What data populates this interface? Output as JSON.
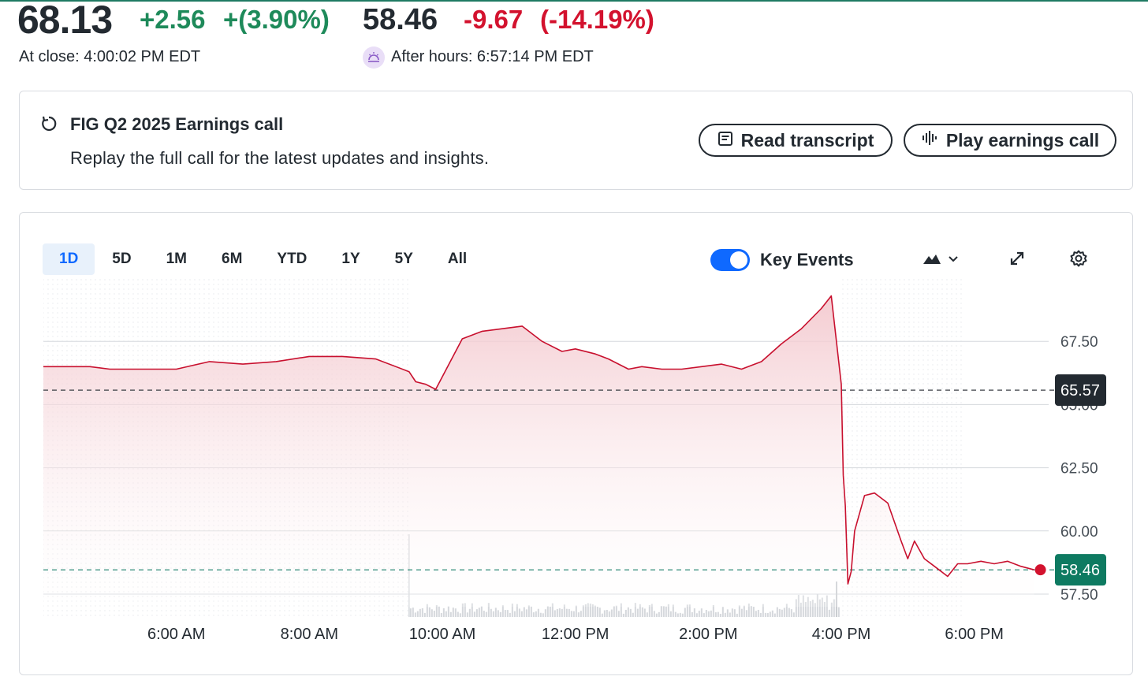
{
  "quote": {
    "price": "68.13",
    "change": "+2.56",
    "change_pct": "+(3.90%)",
    "close_label": "At close: 4:00:02 PM EDT",
    "after_price": "58.46",
    "after_change": "-9.67",
    "after_change_pct": "(-14.19%)",
    "after_label": "After hours: 6:57:14 PM EDT"
  },
  "earnings": {
    "title": "FIG Q2 2025 Earnings call",
    "description": "Replay the full call for the latest updates and insights.",
    "read_label": "Read transcript",
    "play_label": "Play earnings call"
  },
  "toolbar": {
    "ranges": [
      "1D",
      "5D",
      "1M",
      "6M",
      "YTD",
      "1Y",
      "5Y",
      "All"
    ],
    "active_range": "1D",
    "key_events_label": "Key Events",
    "key_events_on": true
  },
  "colors": {
    "positive": "#1e8a5a",
    "negative": "#d3122e",
    "line": "#c8102e",
    "accent": "#0f69ff",
    "prev_close_badge": "#232a31",
    "current_badge": "#0e7a61"
  },
  "chart_data": {
    "type": "area",
    "ylim": [
      57.0,
      70.0
    ],
    "y_ticks": [
      {
        "value": 57.5,
        "label": "57.50"
      },
      {
        "value": 60.0,
        "label": "60.00"
      },
      {
        "value": 62.5,
        "label": "62.50"
      },
      {
        "value": 65.0,
        "label": "65.00"
      },
      {
        "value": 67.5,
        "label": "67.50"
      }
    ],
    "x_ticks": [
      "6:00 AM",
      "8:00 AM",
      "10:00 AM",
      "12:00 PM",
      "2:00 PM",
      "4:00 PM",
      "6:00 PM"
    ],
    "x_tick_hours": [
      6,
      8,
      10,
      12,
      14,
      16,
      18
    ],
    "x_range_hours": [
      4,
      19
    ],
    "regular_session_hours": [
      9.5,
      16
    ],
    "previous_close": {
      "value": 65.57,
      "label": "65.57"
    },
    "current": {
      "value": 58.46,
      "label": "58.46"
    },
    "series": [
      {
        "x": [
          4.0,
          4.3,
          4.7,
          5.0,
          5.5,
          6.0,
          6.5,
          7.0,
          7.5,
          8.0,
          8.5,
          9.0,
          9.5,
          9.6,
          9.75,
          9.9,
          10.1,
          10.3,
          10.6,
          10.9,
          11.2,
          11.5,
          11.8,
          12.0,
          12.3,
          12.5,
          12.8,
          13.0,
          13.3,
          13.6,
          13.9,
          14.2,
          14.5,
          14.8,
          15.1,
          15.4,
          15.7,
          15.85,
          16.0,
          16.03,
          16.06,
          16.1,
          16.15,
          16.2,
          16.35,
          16.5,
          16.7,
          16.9,
          17.0,
          17.1,
          17.25,
          17.4,
          17.6,
          17.75,
          17.9,
          18.1,
          18.3,
          18.5,
          18.7,
          18.9
        ],
        "y": [
          66.5,
          66.5,
          66.5,
          66.4,
          66.4,
          66.4,
          66.7,
          66.6,
          66.7,
          66.9,
          66.9,
          66.8,
          66.3,
          65.9,
          65.8,
          65.6,
          66.6,
          67.6,
          67.9,
          68.0,
          68.1,
          67.5,
          67.1,
          67.2,
          67.0,
          66.8,
          66.4,
          66.5,
          66.4,
          66.4,
          66.5,
          66.6,
          66.4,
          66.7,
          67.4,
          68.0,
          68.8,
          69.3,
          65.8,
          62.2,
          61.0,
          57.9,
          58.4,
          60.0,
          61.4,
          61.5,
          61.1,
          59.6,
          58.9,
          59.6,
          58.9,
          58.6,
          58.2,
          58.7,
          58.7,
          58.8,
          58.7,
          58.8,
          58.6,
          58.46
        ]
      }
    ]
  }
}
